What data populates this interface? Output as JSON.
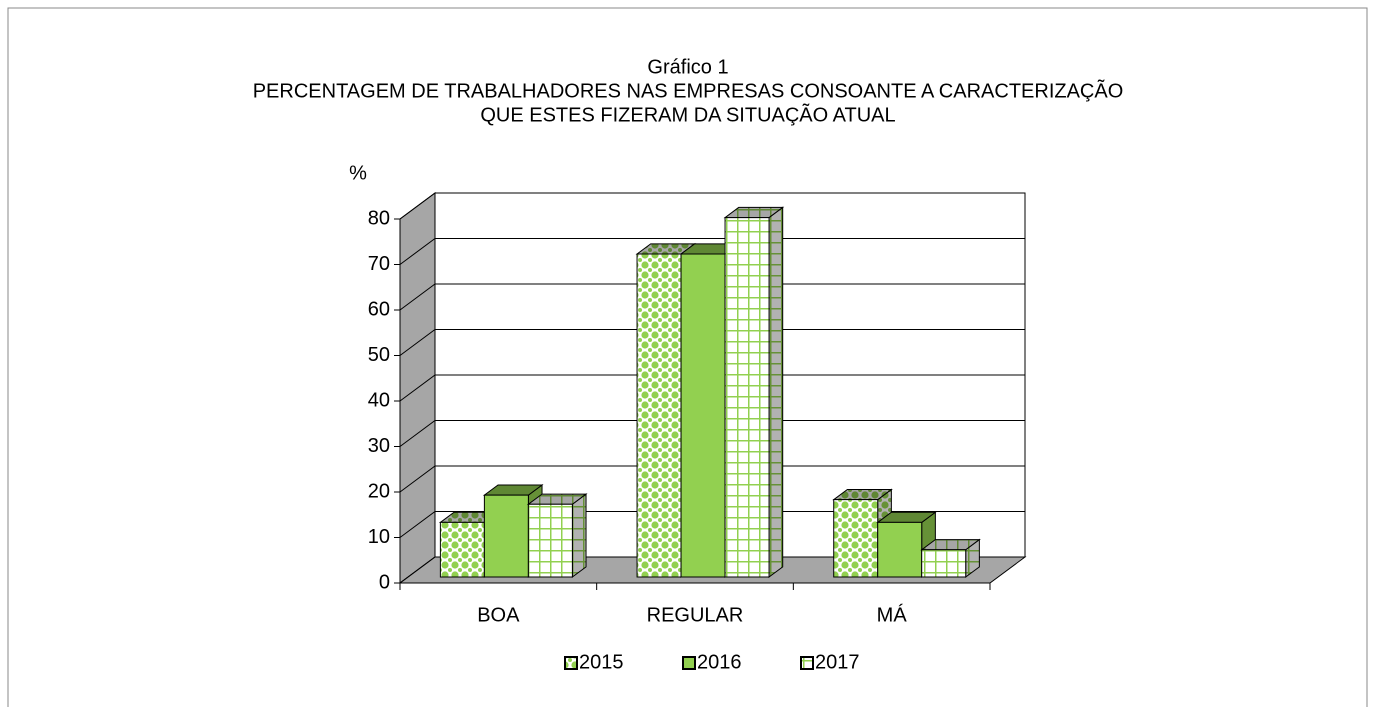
{
  "chart_data": {
    "type": "bar3d",
    "title": "Gráfico 1",
    "subtitle": [
      "PERCENTAGEM DE TRABALHADORES NAS EMPRESAS CONSOANTE A CARACTERIZAÇÃO",
      "QUE ESTES FIZERAM DA SITUAÇÃO ATUAL"
    ],
    "ylabel": "%",
    "categories": [
      "BOA",
      "REGULAR",
      "MÁ"
    ],
    "series": [
      {
        "name": "2015",
        "color": "#92d050",
        "pattern": "dots",
        "values": [
          12,
          71,
          17
        ]
      },
      {
        "name": "2016",
        "color": "#92d050",
        "pattern": "solid",
        "values": [
          18,
          71,
          12
        ]
      },
      {
        "name": "2017",
        "color": "#92d050",
        "pattern": "grid",
        "values": [
          16,
          79,
          6
        ]
      }
    ],
    "ylim": [
      0,
      80
    ],
    "yticks": [
      0,
      10,
      20,
      30,
      40,
      50,
      60,
      70,
      80
    ],
    "grid": true,
    "legend": "bottom"
  }
}
